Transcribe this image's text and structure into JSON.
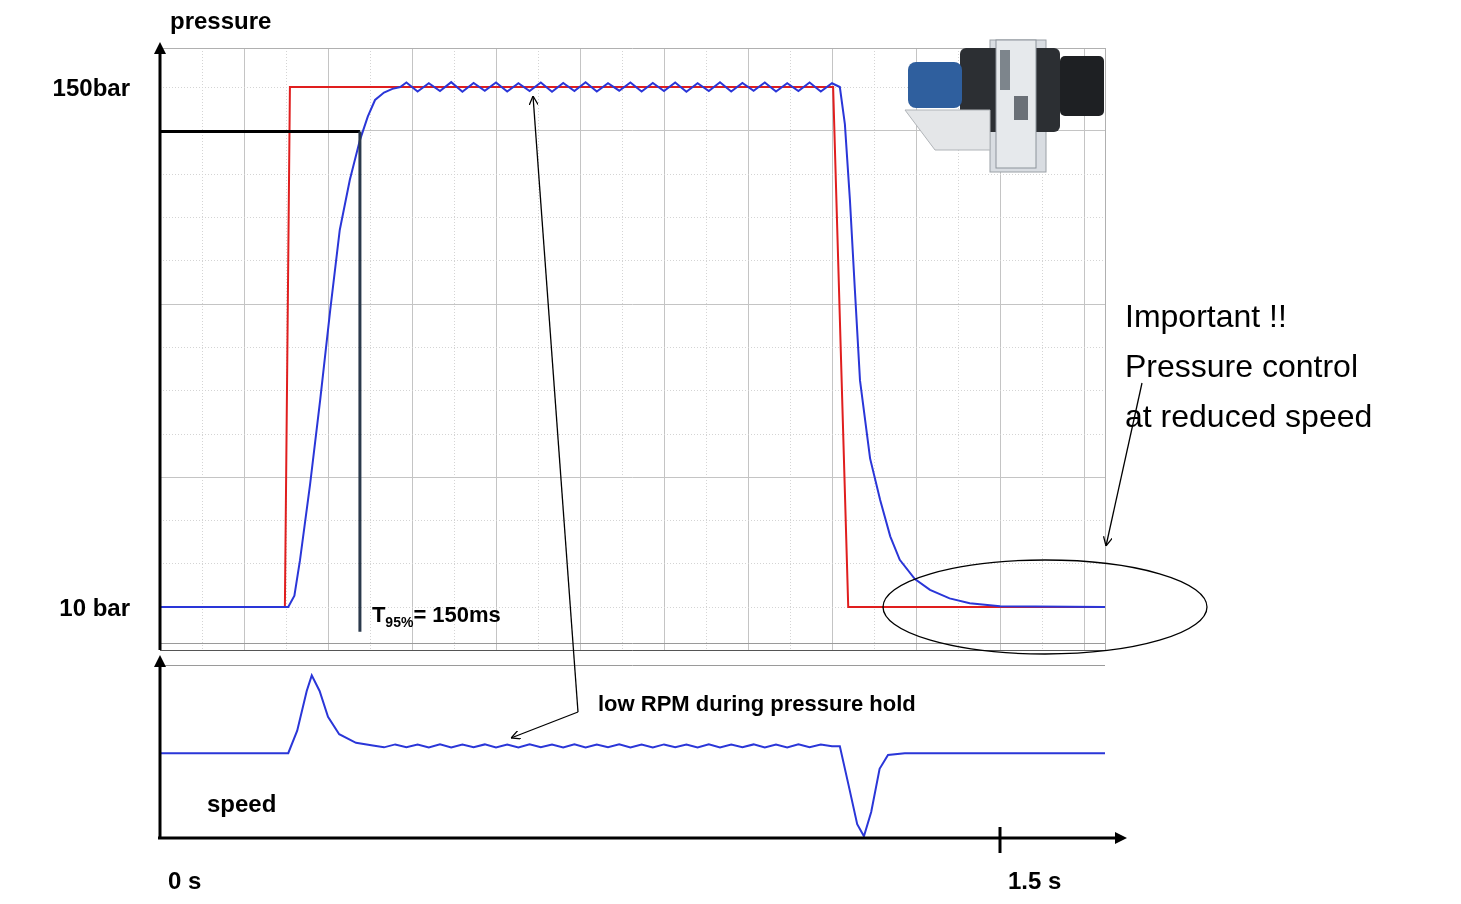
{
  "chart_data": [
    {
      "type": "line",
      "y_label": "pressure",
      "xlim": [
        0,
        1.6875
      ],
      "ylim": [
        -1.6,
        160.5
      ],
      "yticks": [
        {
          "value": 10,
          "label": "10 bar"
        },
        {
          "value": 150,
          "label": "150bar"
        }
      ],
      "tick_labels": "y",
      "grid": true,
      "series": [
        {
          "color": "#e01e1e",
          "x": [
            0,
            0.223,
            0.232,
            1.202,
            1.229,
            1.6875
          ],
          "values": [
            10,
            10,
            150,
            150,
            10,
            10
          ]
        },
        {
          "color": "#2a36d8",
          "x": [
            0,
            0.229,
            0.24,
            0.25,
            0.268,
            0.286,
            0.304,
            0.321,
            0.339,
            0.357,
            0.371,
            0.384,
            0.4,
            0.415,
            0.429,
            0.44,
            0.46,
            0.48,
            0.5,
            0.52,
            0.54,
            0.56,
            0.58,
            0.6,
            0.62,
            0.64,
            0.66,
            0.68,
            0.7,
            0.72,
            0.74,
            0.76,
            0.78,
            0.8,
            0.82,
            0.84,
            0.86,
            0.88,
            0.9,
            0.92,
            0.94,
            0.96,
            0.98,
            1.0,
            1.02,
            1.04,
            1.06,
            1.08,
            1.1,
            1.12,
            1.14,
            1.16,
            1.18,
            1.2,
            1.214,
            1.223,
            1.232,
            1.241,
            1.25,
            1.268,
            1.286,
            1.304,
            1.321,
            1.348,
            1.375,
            1.41,
            1.446,
            1.5,
            1.6875
          ],
          "values": [
            10,
            10,
            13,
            22.6,
            43,
            65.7,
            90,
            111.5,
            125,
            135.7,
            142,
            146.5,
            148.5,
            149.5,
            150,
            151.2,
            148.8,
            151,
            148.9,
            151.3,
            148.7,
            151.1,
            149,
            151.2,
            148.8,
            151,
            148.9,
            151.2,
            148.7,
            151.1,
            148.9,
            151.3,
            148.8,
            151,
            149,
            151.2,
            148.8,
            151.1,
            148.9,
            151.2,
            148.7,
            151,
            148.9,
            151.3,
            148.8,
            151.1,
            149,
            151.2,
            148.8,
            151,
            148.9,
            151.2,
            148.8,
            151,
            150,
            140,
            119.6,
            95,
            71,
            50,
            38.8,
            29,
            22.7,
            17.5,
            14.6,
            12.3,
            11,
            10.2,
            10
          ]
        }
      ],
      "t95": {
        "label": "T",
        "subscript": "95%",
        "label_end": "= 150ms",
        "x": 0.357,
        "y": 138,
        "y_bottom": 3.3
      },
      "annotation": [
        "Important !!",
        "Pressure control",
        "at reduced speed"
      ]
    },
    {
      "type": "line",
      "y_label": "speed",
      "xlim": [
        0,
        1.6875
      ],
      "ylim": [
        0,
        100
      ],
      "xticks": [
        {
          "value": 0,
          "label": "0 s"
        },
        {
          "value": 1.5,
          "label": "1.5 s"
        }
      ],
      "tick_labels": "x",
      "grid": false,
      "series": [
        {
          "color": "#2a36d8",
          "x": [
            0,
            0.229,
            0.245,
            0.262,
            0.271,
            0.285,
            0.3,
            0.32,
            0.35,
            0.38,
            0.4,
            0.42,
            0.44,
            0.46,
            0.48,
            0.5,
            0.52,
            0.54,
            0.56,
            0.58,
            0.6,
            0.62,
            0.64,
            0.66,
            0.68,
            0.7,
            0.72,
            0.74,
            0.76,
            0.78,
            0.8,
            0.82,
            0.84,
            0.86,
            0.88,
            0.9,
            0.92,
            0.94,
            0.96,
            0.98,
            1.0,
            1.02,
            1.04,
            1.06,
            1.08,
            1.1,
            1.12,
            1.14,
            1.16,
            1.18,
            1.2,
            1.214,
            1.23,
            1.245,
            1.257,
            1.27,
            1.285,
            1.3,
            1.33,
            1.6875
          ],
          "values": [
            49,
            49,
            62,
            85,
            94,
            85,
            70,
            60,
            55,
            53.5,
            52.4,
            54.1,
            52.5,
            54,
            52.3,
            54.2,
            52.4,
            54,
            52.5,
            54.1,
            52.3,
            54,
            52.4,
            54.2,
            52.5,
            54,
            52.3,
            54.1,
            52.4,
            54,
            52.5,
            54.2,
            52.3,
            54,
            52.4,
            54.1,
            52.5,
            54,
            52.3,
            54.2,
            52.4,
            54,
            52.5,
            54.1,
            52.3,
            54,
            52.4,
            54.2,
            52.5,
            54,
            53,
            53,
            30,
            8,
            1,
            15,
            40,
            48,
            49,
            49
          ]
        }
      ],
      "annotation": "low RPM during pressure hold"
    }
  ]
}
